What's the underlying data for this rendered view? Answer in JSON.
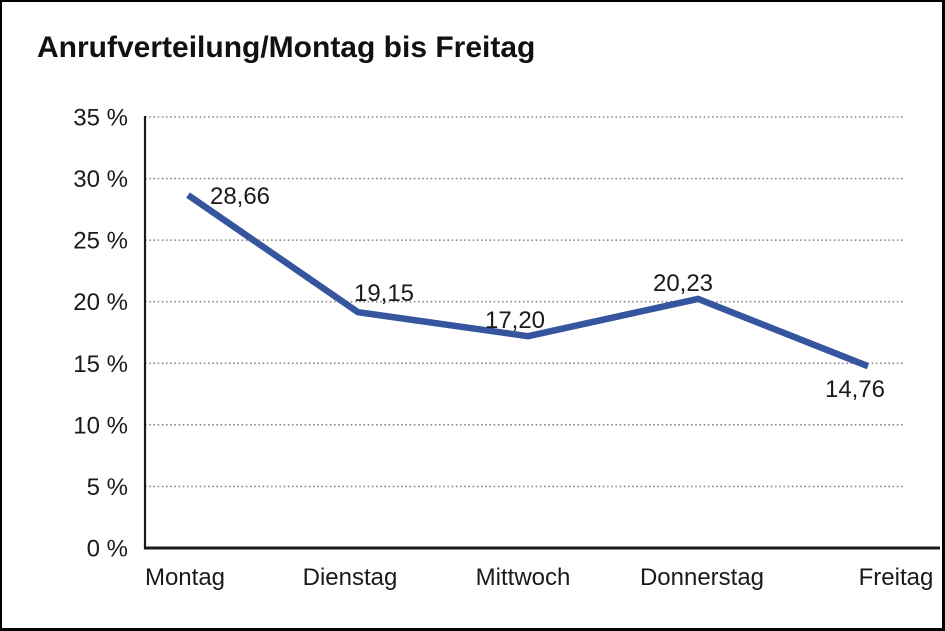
{
  "window": {
    "background": "#ffffff",
    "border_color": "#000000"
  },
  "chart_data": {
    "type": "line",
    "title": "Anrufverteilung/Montag bis Freitag",
    "categories": [
      "Montag",
      "Dienstag",
      "Mittwoch",
      "Donnerstag",
      "Freitag"
    ],
    "series": [
      {
        "name": "Anrufverteilung",
        "values": [
          28.66,
          19.15,
          17.2,
          20.23,
          14.76
        ],
        "value_labels": [
          "28,66",
          "19,15",
          "17,20",
          "20,23",
          "14,76"
        ]
      }
    ],
    "xlabel": "",
    "ylabel": "",
    "unit": "%",
    "ylim": [
      0,
      35
    ],
    "y_tick_values": [
      0,
      5,
      10,
      15,
      20,
      25,
      30,
      35
    ],
    "y_tick_labels": [
      "0 %",
      "5 %",
      "10 %",
      "15 %",
      "20 %",
      "25 %",
      "30 %",
      "35 %"
    ],
    "grid": "horizontal-dotted",
    "legend_position": "none",
    "colors": {
      "line": "#36559F",
      "axis": "#1a1a1a",
      "grid": "#8a8a8a",
      "text": "#1a1a1a"
    }
  }
}
